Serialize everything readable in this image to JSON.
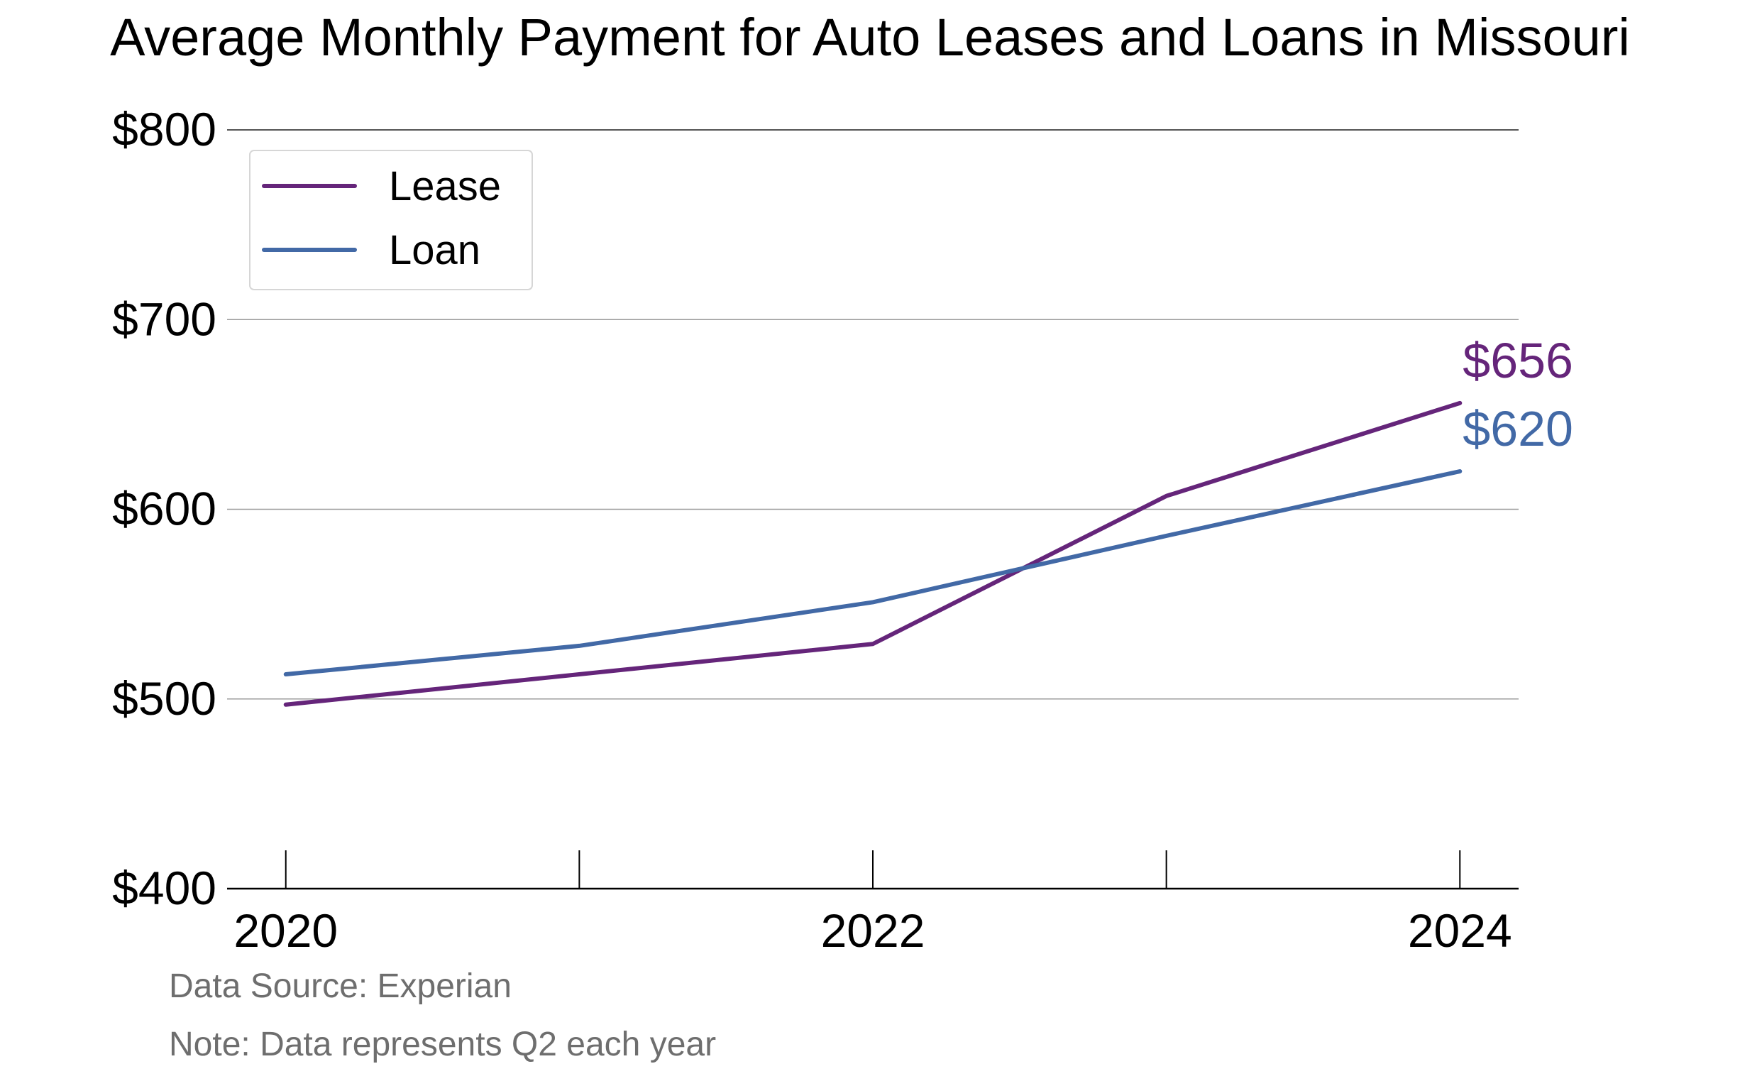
{
  "chart_data": {
    "type": "line",
    "title": "Average Monthly Payment for Auto Leases and Loans in Missouri",
    "xlabel": "",
    "ylabel": "",
    "x": [
      2020,
      2021,
      2022,
      2023,
      2024
    ],
    "x_tick_labels": [
      "2020",
      "2022",
      "2024"
    ],
    "x_tick_values": [
      2020,
      2022,
      2024
    ],
    "x_minor_ticks": [
      2020,
      2021,
      2022,
      2023,
      2024
    ],
    "xlim": [
      2019.8,
      2024.2
    ],
    "y_tick_labels": [
      "$400",
      "$500",
      "$600",
      "$700",
      "$800"
    ],
    "y_tick_values": [
      400,
      500,
      600,
      700,
      800
    ],
    "ylim": [
      400,
      800
    ],
    "grid": "horizontal",
    "legend_position": "top-left",
    "series": [
      {
        "name": "Lease",
        "color": "#65257a",
        "values": [
          497,
          513,
          529,
          607,
          656
        ],
        "end_label": "$656"
      },
      {
        "name": "Loan",
        "color": "#4269a6",
        "values": [
          513,
          528,
          551,
          586,
          620
        ],
        "end_label": "$620"
      }
    ],
    "footnotes": [
      "Data Source: Experian",
      "Note: Data represents Q2 each year"
    ]
  }
}
